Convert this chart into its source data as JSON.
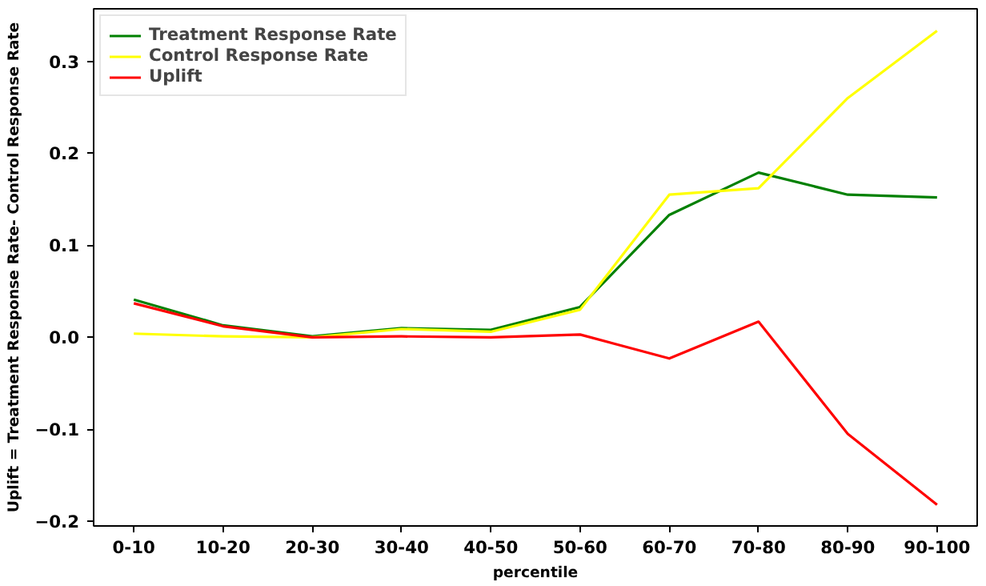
{
  "chart_data": {
    "type": "line",
    "xlabel": "percentile",
    "ylabel": "Uplift = Treatment Response Rate- Control Response Rate",
    "categories": [
      "0-10",
      "10-20",
      "20-30",
      "30-40",
      "40-50",
      "50-60",
      "60-70",
      "70-80",
      "80-90",
      "90-100"
    ],
    "series": [
      {
        "name": "Treatment Response Rate",
        "color": "#008000",
        "values": [
          0.041,
          0.013,
          0.001,
          0.01,
          0.008,
          0.033,
          0.133,
          0.179,
          0.155,
          0.152
        ]
      },
      {
        "name": "Control Response Rate",
        "color": "#ffff00",
        "values": [
          0.004,
          0.001,
          0.0,
          0.009,
          0.006,
          0.03,
          0.155,
          0.162,
          0.26,
          0.333
        ]
      },
      {
        "name": "Uplift",
        "color": "#ff0000",
        "values": [
          0.037,
          0.012,
          0.0,
          0.001,
          0.0,
          0.003,
          -0.023,
          0.017,
          -0.105,
          -0.182
        ]
      }
    ],
    "ylim": [
      -0.205,
      0.357
    ],
    "yticks": [
      {
        "value": -0.2,
        "label": "−0.2"
      },
      {
        "value": -0.1,
        "label": "−0.1"
      },
      {
        "value": 0,
        "label": "0.0"
      },
      0.1,
      0.2,
      0.3
    ],
    "grid": false,
    "legend": "top left",
    "marker": "none",
    "line_style": "solid"
  }
}
